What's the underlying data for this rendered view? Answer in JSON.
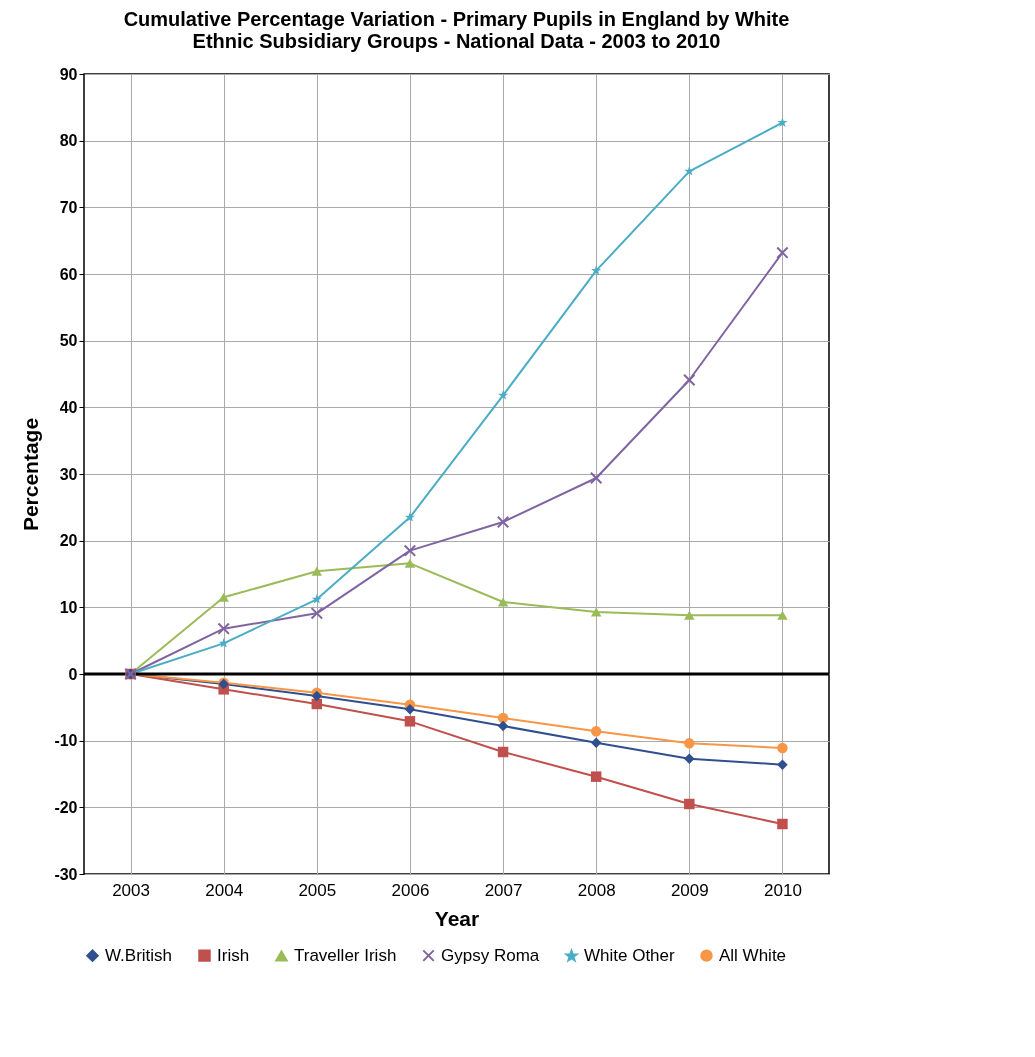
{
  "chart_data": {
    "type": "line",
    "title": "Cumulative Percentage Variation  -  Primary Pupils in England by White Ethnic Subsidiary Groups - National Data -  2003 to 2010",
    "xlabel": "Year",
    "ylabel": "Percentage",
    "categories": [
      "2003",
      "2004",
      "2005",
      "2006",
      "2007",
      "2008",
      "2009",
      "2010"
    ],
    "series": [
      {
        "name": "W.British",
        "color": "#2f4f8f",
        "marker": "diamond",
        "values": [
          0,
          -1.5,
          -3.3,
          -5.3,
          -7.8,
          -10.3,
          -12.7,
          -13.6
        ]
      },
      {
        "name": "Irish",
        "color": "#c0504d",
        "marker": "square",
        "values": [
          0,
          -2.3,
          -4.5,
          -7.1,
          -11.7,
          -15.4,
          -19.5,
          -22.5
        ]
      },
      {
        "name": "Traveller Irish",
        "color": "#9bbb59",
        "marker": "triangle",
        "values": [
          0,
          11.5,
          15.4,
          16.6,
          10.8,
          9.3,
          8.8,
          8.8
        ]
      },
      {
        "name": "Gypsy Roma",
        "color": "#8064a2",
        "marker": "cross",
        "values": [
          0,
          6.8,
          9.1,
          18.5,
          22.8,
          29.4,
          44.1,
          63.2
        ]
      },
      {
        "name": "White Other",
        "color": "#4bacc6",
        "marker": "star",
        "values": [
          0,
          4.6,
          11.2,
          23.5,
          41.8,
          60.5,
          75.4,
          82.7
        ]
      },
      {
        "name": "All White",
        "color": "#f79646",
        "marker": "circle",
        "values": [
          0,
          -1.3,
          -2.8,
          -4.6,
          -6.6,
          -8.6,
          -10.4,
          -11.1
        ]
      }
    ],
    "ylim": [
      -30,
      90
    ],
    "yticks": [
      -30,
      -20,
      -10,
      0,
      10,
      20,
      30,
      40,
      50,
      60,
      70,
      80,
      90
    ],
    "ref_lines": [
      {
        "axis": "y",
        "value": 0,
        "color": "#000000"
      }
    ],
    "grid": true,
    "legend": "bottom",
    "line_style": "solid"
  }
}
